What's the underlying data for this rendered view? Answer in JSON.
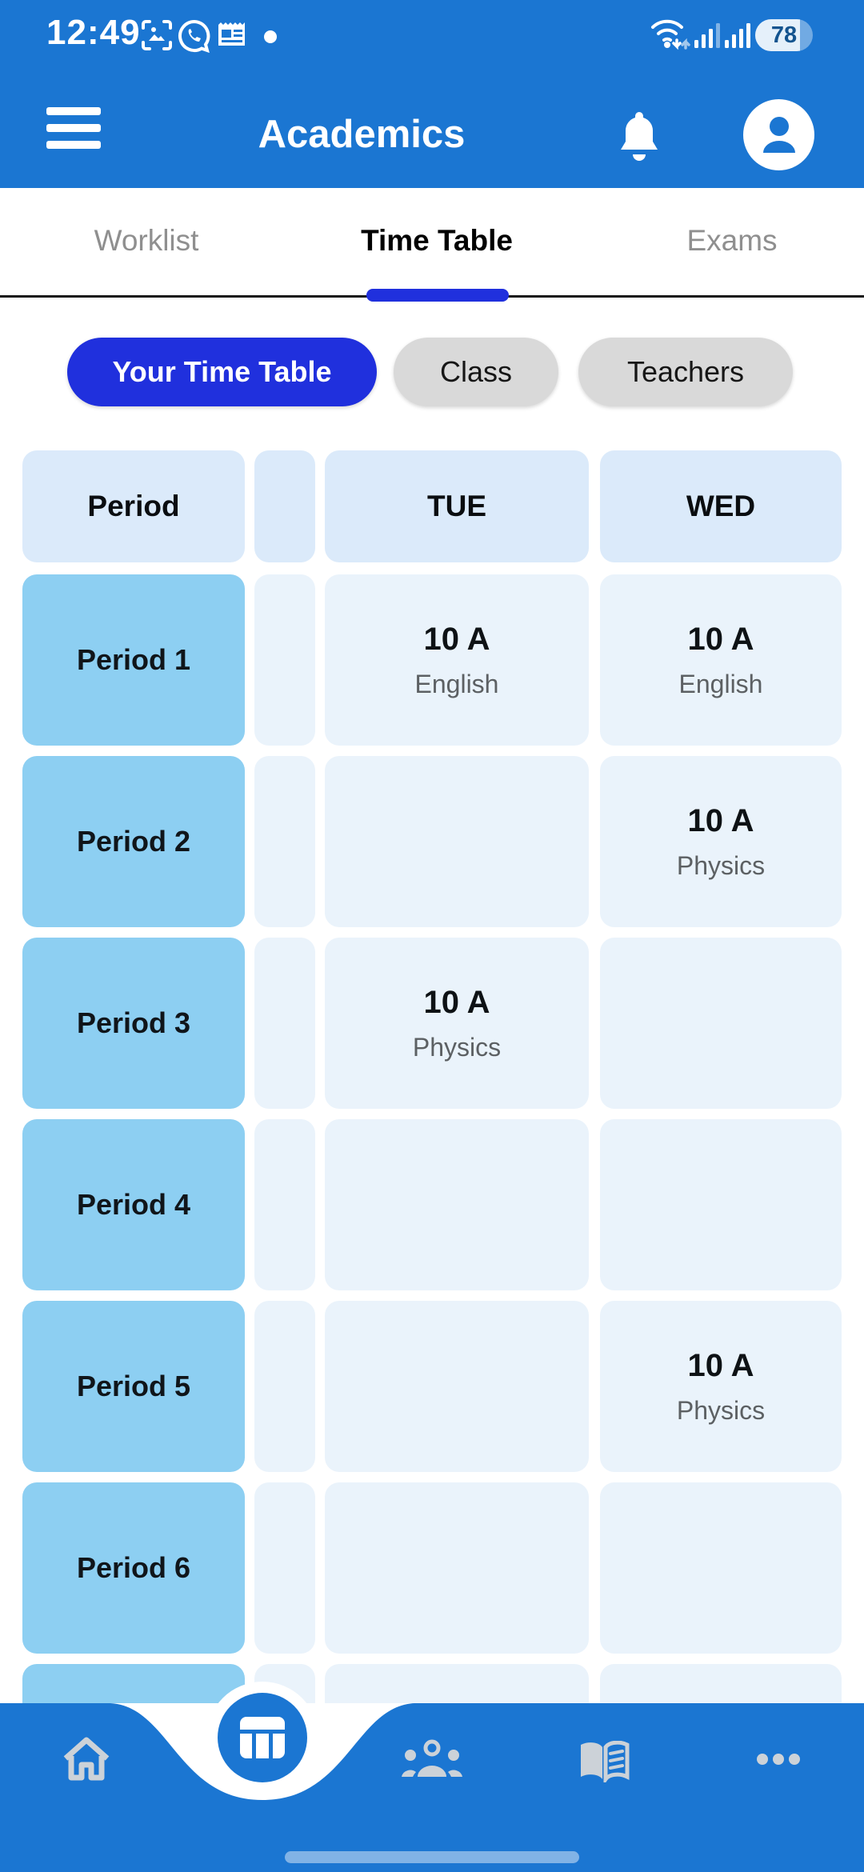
{
  "colors": {
    "app_blue": "#1b76d2",
    "accent_blue": "#2030dd",
    "cell_header_bg": "#dbeafa",
    "cell_body_bg": "#eaf3fb",
    "cell_label_bg": "#8dcff2",
    "chip_gray_bg": "#d9d9d9",
    "nav_icon_gray": "#ccd2d8",
    "subject_gray": "#5c6063",
    "tab_inactive_gray": "#8f8f8f"
  },
  "status_bar": {
    "time": "12:49",
    "battery_percent": "78",
    "left_icons": [
      "screenshot-icon",
      "whatsapp-icon",
      "news-icon",
      "notification-dot"
    ],
    "right_icons": [
      "wifi-icon",
      "signal-bars",
      "signal-bars",
      "battery-pill"
    ]
  },
  "header": {
    "title": "Academics"
  },
  "tabs": [
    {
      "label": "Worklist",
      "active": false
    },
    {
      "label": "Time Table",
      "active": true
    },
    {
      "label": "Exams",
      "active": false
    }
  ],
  "filters": [
    {
      "label": "Your Time Table",
      "active": true
    },
    {
      "label": "Class",
      "active": false
    },
    {
      "label": "Teachers",
      "active": false
    }
  ],
  "timetable": {
    "columns": [
      "Period",
      "",
      "TUE",
      "WED"
    ],
    "rows": [
      {
        "period": "Period 1",
        "cells": [
          {
            "title": "10 A",
            "subtitle": "English"
          },
          {
            "title": "10 A",
            "subtitle": "English"
          }
        ]
      },
      {
        "period": "Period 2",
        "cells": [
          null,
          {
            "title": "10 A",
            "subtitle": "Physics"
          }
        ]
      },
      {
        "period": "Period 3",
        "cells": [
          {
            "title": "10 A",
            "subtitle": "Physics"
          },
          null
        ]
      },
      {
        "period": "Period 4",
        "cells": [
          null,
          null
        ]
      },
      {
        "period": "Period 5",
        "cells": [
          null,
          {
            "title": "10 A",
            "subtitle": "Physics"
          }
        ]
      },
      {
        "period": "Period 6",
        "cells": [
          null,
          null
        ]
      },
      {
        "period": "",
        "cells": [
          null,
          null
        ]
      }
    ]
  },
  "bottom_nav": {
    "items": [
      {
        "icon": "home-icon",
        "active": false
      },
      {
        "icon": "timetable-icon",
        "active": true
      },
      {
        "icon": "students-icon",
        "active": false
      },
      {
        "icon": "book-icon",
        "active": false
      },
      {
        "icon": "more-icon",
        "active": false
      }
    ]
  }
}
